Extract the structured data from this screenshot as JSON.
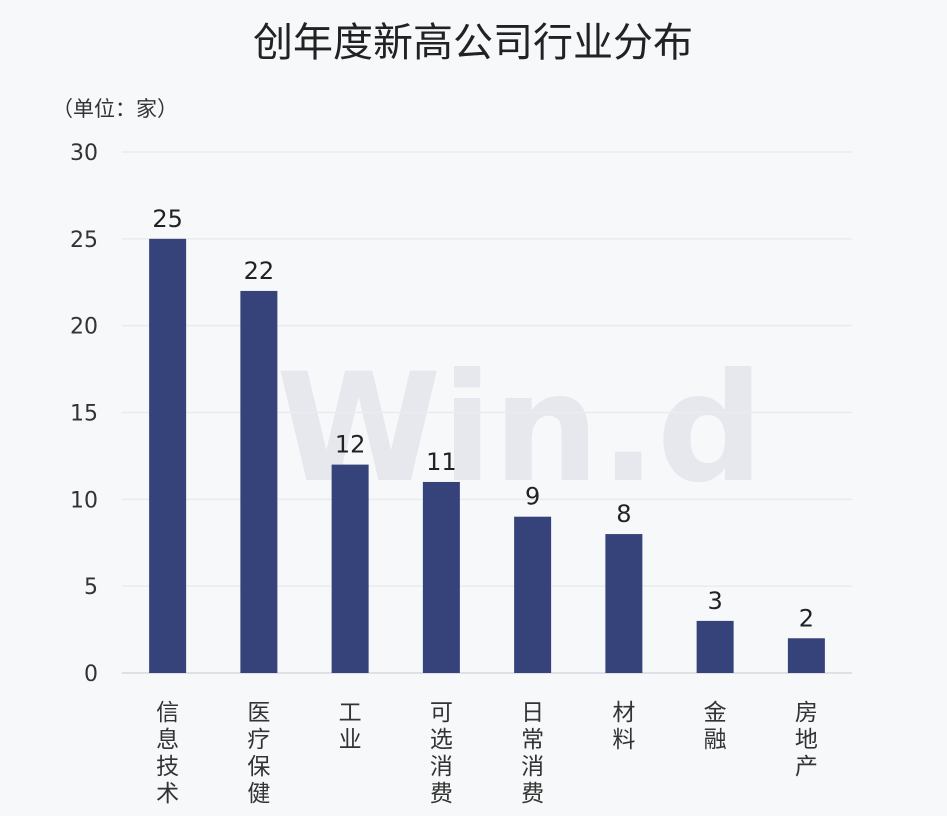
{
  "chart_data": {
    "type": "bar",
    "title": "创年度新高公司行业分布",
    "unit_label": "（单位：家）",
    "watermark": "Win.d",
    "categories": [
      "信息技术",
      "医疗保健",
      "工业",
      "可选消费",
      "日常消费",
      "材料",
      "金融",
      "房地产"
    ],
    "values": [
      25,
      22,
      12,
      11,
      9,
      8,
      3,
      2
    ],
    "ylim": [
      0,
      30
    ],
    "yticks": [
      0,
      5,
      10,
      15,
      20,
      25,
      30
    ],
    "grid": true,
    "bar_color": "#36427a",
    "grid_color": "#e9ebef",
    "text_color": "#333333"
  }
}
